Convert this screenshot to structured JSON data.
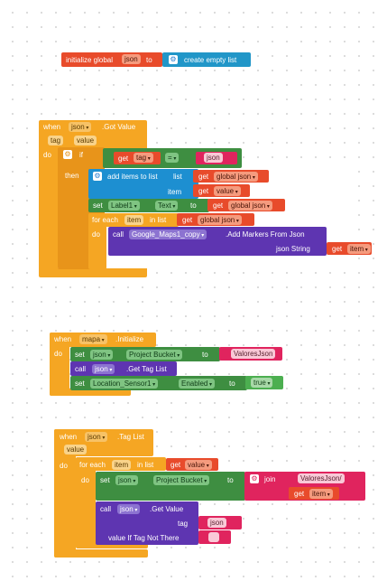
{
  "block_init": {
    "label": "initialize global",
    "var_name": "json",
    "to_label": "to",
    "value_label": "create empty list"
  },
  "block_got_value": {
    "when_label": "when",
    "component": "json",
    "event": ".Got Value",
    "param_tag": "tag",
    "param_value": "value",
    "do_label": "do",
    "if_label": "if",
    "get_label": "get",
    "get_tag": "tag",
    "eq_op": "=",
    "json_string": "json",
    "then_label": "then",
    "add_items_label": "add items to list",
    "list_label": "list",
    "global_json": "global json",
    "item_label": "item",
    "value_var": "value",
    "set_label": "set",
    "label_comp": "Label1",
    "text_prop": "Text",
    "to_label": "to",
    "for_each_label": "for each",
    "item_var": "item",
    "in_list_label": "in list",
    "call_label": "call",
    "maps_comp": "Google_Maps1_copy",
    "add_markers": ".Add Markers From Json",
    "json_string_label": "json String",
    "get_item": "item"
  },
  "block_mapa_init": {
    "when_label": "when",
    "component": "mapa",
    "event": ".Initialize",
    "do_label": "do",
    "set_label": "set",
    "json_comp": "json",
    "project_bucket": "Project Bucket",
    "to_label": "to",
    "bucket_value": "ValoresJson",
    "call_label": "call",
    "get_tag_list": ".Get Tag List",
    "location_comp": "Location_Sensor1",
    "enabled_prop": "Enabled",
    "true_value": "true"
  },
  "block_tag_list": {
    "when_label": "when",
    "component": "json",
    "event": ".Tag List",
    "param_value": "value",
    "do_label": "do",
    "for_each_label": "for each",
    "item_var": "item",
    "in_list_label": "in list",
    "get_label": "get",
    "value_var": "value",
    "set_label": "set",
    "json_comp": "json",
    "project_bucket": "Project Bucket",
    "to_label": "to",
    "join_label": "join",
    "join_string": "ValoresJson/",
    "get_item": "item",
    "call_label": "call",
    "get_value_method": ".Get Value",
    "tag_label": "tag",
    "json_string": "json",
    "if_not_there_label": "value If Tag Not There",
    "empty_string": " "
  }
}
